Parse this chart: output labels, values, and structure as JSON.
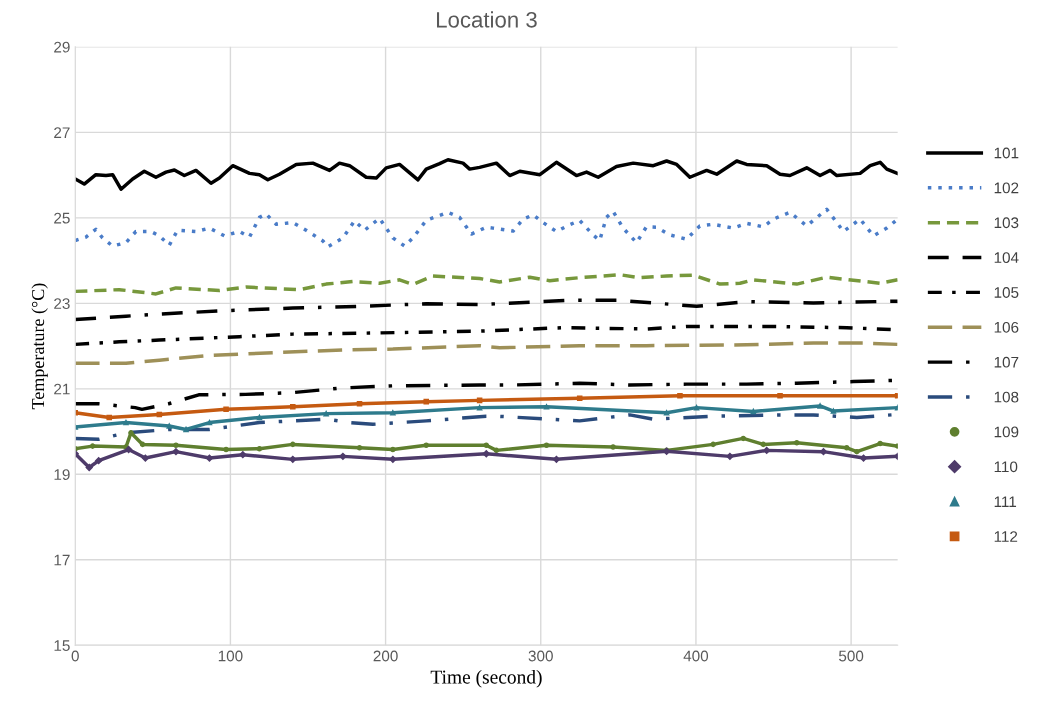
{
  "chart_data": {
    "type": "line",
    "title": "Location 3",
    "xlabel": "Time (second)",
    "ylabel": "Temperature (°C)",
    "xlim": [
      0,
      530
    ],
    "xticks": [
      0,
      100,
      200,
      300,
      400,
      500
    ],
    "ylim": [
      15,
      29
    ],
    "yticks": [
      15,
      17,
      19,
      21,
      23,
      25,
      27,
      29
    ],
    "grid": true,
    "legend": "right",
    "series": [
      {
        "name": "101",
        "color": "#000000",
        "line_style": "solid",
        "x": [
          0,
          5.8,
          13.3,
          19.8,
          24.1,
          29.5,
          37,
          44.5,
          52,
          58.5,
          63.9,
          70.3,
          77.8,
          87.5,
          92.9,
          101.5,
          112.3,
          118.7,
          124.1,
          131.6,
          142.4,
          153.1,
          163.9,
          170.3,
          176.8,
          187.5,
          194,
          200.4,
          209,
          220.9,
          226.2,
          234.8,
          240.2,
          249.9,
          254.2,
          260.6,
          271.4,
          280,
          286.5,
          299.4,
          310.1,
          323,
          329.5,
          337,
          348.8,
          359.6,
          372.5,
          381.1,
          387.6,
          396.1,
          406.9,
          413.4,
          426.3,
          432.7,
          445.6,
          454.2,
          460.6,
          471.4,
          480,
          486.5,
          490.8,
          505.8,
          512.3,
          518.7,
          523,
          530
        ],
        "values": [
          25.91,
          25.79,
          26.01,
          25.99,
          26.01,
          25.67,
          25.91,
          26.09,
          25.95,
          26.07,
          26.12,
          25.99,
          26.11,
          25.81,
          25.93,
          26.22,
          26.04,
          26.01,
          25.89,
          26.02,
          26.25,
          26.28,
          26.11,
          26.28,
          26.22,
          25.95,
          25.93,
          26.17,
          26.25,
          25.89,
          26.14,
          26.27,
          26.36,
          26.28,
          26.14,
          26.18,
          26.28,
          25.99,
          26.09,
          26.01,
          26.3,
          25.99,
          26.07,
          25.95,
          26.2,
          26.28,
          26.22,
          26.33,
          26.25,
          25.95,
          26.11,
          26.02,
          26.33,
          26.25,
          26.22,
          26.02,
          25.99,
          26.17,
          25.99,
          26.11,
          25.99,
          26.04,
          26.22,
          26.3,
          26.14,
          26.04
        ]
      },
      {
        "name": "102",
        "color": "#4a7cc8",
        "line_style": "dotted",
        "x": [
          0,
          6.9,
          13.3,
          17.6,
          24.1,
          32.7,
          39.1,
          48.8,
          54.2,
          60.6,
          66,
          77.8,
          86.5,
          96.1,
          105.8,
          112.3,
          118.7,
          123,
          129.5,
          140.2,
          148.8,
          159.6,
          162.8,
          172.5,
          180,
          186.5,
          196.1,
          204.7,
          212.3,
          217.6,
          226.2,
          240.2,
          247.7,
          255.3,
          264.9,
          269.2,
          282.2,
          288.6,
          295.1,
          301.5,
          310.1,
          318.7,
          325.1,
          333.7,
          338,
          342.3,
          346.6,
          353.1,
          361.7,
          368.1,
          374.6,
          383.2,
          393.9,
          402.5,
          411.1,
          424,
          432.7,
          443.4,
          449.9,
          460.6,
          471.4,
          484.3,
          490.8,
          495.1,
          505.8,
          514.4,
          523,
          530
        ],
        "values": [
          24.47,
          24.55,
          24.73,
          24.53,
          24.34,
          24.42,
          24.68,
          24.68,
          24.58,
          24.36,
          24.71,
          24.68,
          24.76,
          24.58,
          24.68,
          24.55,
          25.01,
          25.09,
          24.85,
          24.89,
          24.71,
          24.46,
          24.32,
          24.53,
          24.93,
          24.71,
          24.99,
          24.53,
          24.34,
          24.53,
          24.94,
          25.13,
          25.01,
          24.62,
          24.78,
          24.76,
          24.69,
          24.97,
          25.07,
          24.89,
          24.68,
          24.84,
          24.94,
          24.6,
          24.47,
          25.01,
          25.15,
          24.76,
          24.42,
          24.79,
          24.78,
          24.6,
          24.5,
          24.81,
          24.85,
          24.76,
          24.87,
          24.79,
          24.97,
          25.13,
          24.81,
          25.2,
          24.89,
          24.68,
          24.97,
          24.58,
          24.76,
          24.97
        ]
      },
      {
        "name": "103",
        "color": "#77983c",
        "line_style": "dashed",
        "x": [
          0,
          28.4,
          52,
          64.9,
          92.9,
          110.1,
          144.5,
          161.7,
          178.9,
          196.1,
          209,
          217.6,
          230.5,
          260.6,
          273.5,
          292.9,
          305.8,
          325.1,
          350.9,
          363.8,
          381.1,
          398.3,
          415.5,
          428.4,
          437,
          465,
          484.3,
          518.7,
          530
        ],
        "values": [
          23.28,
          23.32,
          23.22,
          23.36,
          23.3,
          23.38,
          23.32,
          23.45,
          23.51,
          23.47,
          23.55,
          23.44,
          23.64,
          23.58,
          23.5,
          23.61,
          23.53,
          23.6,
          23.67,
          23.6,
          23.64,
          23.66,
          23.45,
          23.47,
          23.55,
          23.45,
          23.61,
          23.47,
          23.55
        ]
      },
      {
        "name": "104",
        "color": "#000000",
        "line_style": "longdashdashdot",
        "x": [
          0,
          32.7,
          54.2,
          97.2,
          140.2,
          183.2,
          226.2,
          260.6,
          318.7,
          350.9,
          400.4,
          432.7,
          475.7,
          530
        ],
        "values": [
          22.62,
          22.7,
          22.75,
          22.83,
          22.89,
          22.93,
          22.99,
          22.97,
          23.07,
          23.07,
          22.93,
          23.04,
          23.01,
          23.05
        ]
      },
      {
        "name": "105",
        "color": "#000000",
        "line_style": "dashdot",
        "x": [
          0,
          28.4,
          54.2,
          105.8,
          140.2,
          183.2,
          260.6,
          314.4,
          368.1,
          393.9,
          445.6,
          497.2,
          530
        ],
        "values": [
          22.04,
          22.1,
          22.14,
          22.22,
          22.28,
          22.3,
          22.35,
          22.43,
          22.4,
          22.46,
          22.46,
          22.43,
          22.38
        ]
      },
      {
        "name": "106",
        "color": "#9e9058",
        "line_style": "longdash",
        "x": [
          0,
          32.7,
          54.2,
          86.5,
          129.5,
          172.5,
          204.7,
          260.6,
          273.5,
          325.1,
          368.1,
          432.7,
          475.7,
          508,
          530
        ],
        "values": [
          21.6,
          21.6,
          21.67,
          21.78,
          21.85,
          21.91,
          21.93,
          22.01,
          21.96,
          22.01,
          22.01,
          22.03,
          22.07,
          22.07,
          22.04
        ]
      },
      {
        "name": "107",
        "color": "#000000",
        "line_style": "longdashdot",
        "x": [
          0,
          15.1,
          38.7,
          43,
          60.2,
          79.6,
          109.7,
          139.8,
          172,
          204.7,
          260.6,
          282.2,
          325.1,
          357.4,
          394,
          432.7,
          465,
          501.5,
          530
        ],
        "values": [
          20.65,
          20.65,
          20.56,
          20.52,
          20.65,
          20.86,
          20.87,
          20.91,
          21.02,
          21.07,
          21.09,
          21.09,
          21.13,
          21.09,
          21.11,
          21.11,
          21.13,
          21.17,
          21.2
        ]
      },
      {
        "name": "108",
        "color": "#2a4b7c",
        "line_style": "longdashdot",
        "x": [
          0,
          15.1,
          32.7,
          60.6,
          86.5,
          118.7,
          140.2,
          161.7,
          176.8,
          191.8,
          226.2,
          264.9,
          271.4,
          325.1,
          357.4,
          372.5,
          411.1,
          454.2,
          475.7,
          503.7,
          529.5
        ],
        "values": [
          19.84,
          19.82,
          19.97,
          20.05,
          20.05,
          20.21,
          20.25,
          20.29,
          20.21,
          20.17,
          20.25,
          20.36,
          20.36,
          20.25,
          20.39,
          20.29,
          20.36,
          20.39,
          20.39,
          20.33,
          20.4
        ]
      },
      {
        "name": "109",
        "color": "#5f7f2f",
        "line_style": "solid",
        "marker": "circle",
        "x": [
          0,
          11.2,
          32.7,
          35.9,
          43.4,
          64.9,
          97.2,
          118.7,
          140.2,
          183.2,
          204.7,
          226.2,
          264.9,
          271.4,
          303.7,
          346.6,
          381.1,
          411.1,
          430.5,
          443.4,
          465,
          497.2,
          503.7,
          518.7,
          530
        ],
        "values": [
          19.6,
          19.66,
          19.64,
          19.97,
          19.7,
          19.68,
          19.58,
          19.6,
          19.7,
          19.62,
          19.58,
          19.68,
          19.68,
          19.56,
          19.68,
          19.64,
          19.56,
          19.7,
          19.84,
          19.7,
          19.74,
          19.62,
          19.53,
          19.72,
          19.66
        ]
      },
      {
        "name": "110",
        "color": "#4e3b6a",
        "line_style": "solid",
        "marker": "diamond",
        "x": [
          0,
          9,
          15.1,
          34.4,
          45.2,
          64.9,
          86.5,
          108,
          140.2,
          172.5,
          204.7,
          264.9,
          310.1,
          381.1,
          421.9,
          445.6,
          482.2,
          508,
          530
        ],
        "values": [
          19.48,
          19.16,
          19.32,
          19.58,
          19.38,
          19.53,
          19.38,
          19.46,
          19.35,
          19.42,
          19.35,
          19.48,
          19.35,
          19.54,
          19.42,
          19.56,
          19.53,
          19.38,
          19.42
        ]
      },
      {
        "name": "111",
        "color": "#2e7b8c",
        "line_style": "solid",
        "marker": "triangle",
        "x": [
          0,
          32.7,
          60.6,
          71.4,
          86.5,
          118.7,
          161.7,
          204.7,
          260.6,
          303.7,
          381.1,
          400.4,
          437,
          480,
          488.6,
          530
        ],
        "values": [
          20.11,
          20.21,
          20.13,
          20.05,
          20.21,
          20.33,
          20.42,
          20.44,
          20.56,
          20.58,
          20.44,
          20.56,
          20.47,
          20.6,
          20.48,
          20.56
        ]
      },
      {
        "name": "112",
        "color": "#c55a11",
        "line_style": "solid",
        "marker": "square",
        "x": [
          0,
          21.9,
          54.2,
          97.2,
          140.2,
          183.2,
          226.2,
          260.6,
          325.1,
          389.7,
          454.2,
          530
        ],
        "values": [
          20.44,
          20.33,
          20.4,
          20.52,
          20.58,
          20.65,
          20.7,
          20.73,
          20.78,
          20.84,
          20.84,
          20.84
        ]
      }
    ]
  }
}
